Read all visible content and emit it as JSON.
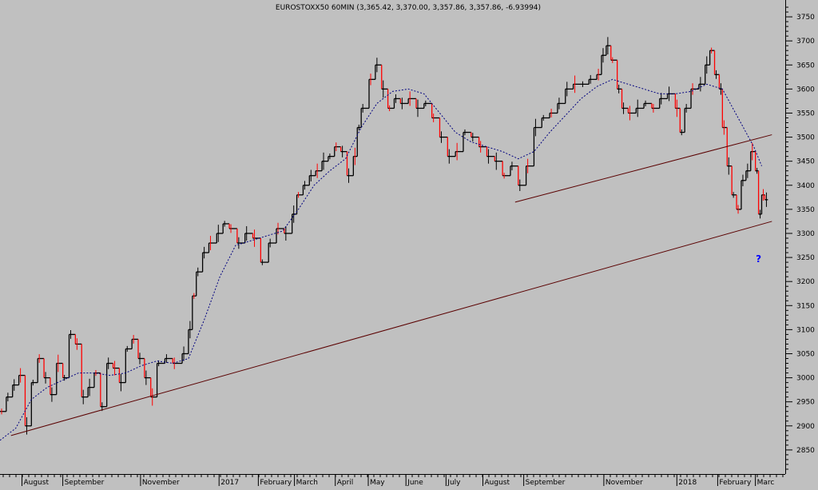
{
  "chart_data": {
    "type": "line",
    "title": "EUROSTOXX50 60MIN (3,365.42, 3,370.00, 3,357.86, 3,357.86, -6.93994)",
    "ylim": [
      2800,
      3780
    ],
    "y_ticks": [
      2850,
      2900,
      2950,
      3000,
      3050,
      3100,
      3150,
      3200,
      3250,
      3300,
      3350,
      3400,
      3450,
      3500,
      3550,
      3600,
      3650,
      3700,
      3750
    ],
    "x_range": [
      0,
      1000
    ],
    "x_tick_labels": [
      {
        "label": "August",
        "x": 30
      },
      {
        "label": "September",
        "x": 82
      },
      {
        "label": "November",
        "x": 181
      },
      {
        "label": "2017",
        "x": 281
      },
      {
        "label": "February",
        "x": 331
      },
      {
        "label": "March",
        "x": 377
      },
      {
        "label": "April",
        "x": 429
      },
      {
        "label": "May",
        "x": 471
      },
      {
        "label": "June",
        "x": 519
      },
      {
        "label": "July",
        "x": 570
      },
      {
        "label": "August",
        "x": 617
      },
      {
        "label": "September",
        "x": 669
      },
      {
        "label": "November",
        "x": 771
      },
      {
        "label": "2018",
        "x": 864
      },
      {
        "label": "February",
        "x": 916
      },
      {
        "label": "Marc",
        "x": 964
      }
    ],
    "series": [
      {
        "style": "bars",
        "color": "#000000",
        "down_color": "#ff0000",
        "x": [
          0,
          8,
          16,
          24,
          32,
          40,
          48,
          56,
          64,
          72,
          80,
          88,
          96,
          104,
          112,
          120,
          128,
          136,
          144,
          152,
          160,
          168,
          176,
          184,
          192,
          200,
          210,
          220,
          232,
          240,
          245,
          250,
          258,
          266,
          276,
          284,
          292,
          302,
          312,
          322,
          332,
          342,
          352,
          362,
          372,
          378,
          386,
          394,
          402,
          410,
          418,
          426,
          434,
          442,
          450,
          455,
          460,
          470,
          478,
          486,
          494,
          502,
          510,
          520,
          530,
          540,
          550,
          560,
          570,
          580,
          590,
          600,
          610,
          620,
          630,
          640,
          650,
          660,
          670,
          680,
          690,
          700,
          710,
          720,
          730,
          740,
          750,
          760,
          766,
          772,
          778,
          786,
          792,
          800,
          810,
          820,
          830,
          840,
          850,
          860,
          866,
          872,
          880,
          890,
          898,
          904,
          910,
          916,
          920,
          926,
          932,
          938,
          944,
          950,
          956,
          962,
          966,
          970,
          974
        ],
        "values": [
          2930,
          2960,
          2985,
          3005,
          2900,
          2990,
          3040,
          3000,
          2965,
          3030,
          3000,
          3090,
          3070,
          2960,
          2980,
          3010,
          2940,
          3030,
          3020,
          2990,
          3060,
          3080,
          3040,
          3000,
          2960,
          3030,
          3040,
          3030,
          3050,
          3100,
          3170,
          3220,
          3260,
          3280,
          3300,
          3320,
          3310,
          3280,
          3300,
          3290,
          3240,
          3280,
          3310,
          3300,
          3340,
          3380,
          3400,
          3420,
          3430,
          3450,
          3460,
          3480,
          3470,
          3420,
          3460,
          3520,
          3560,
          3620,
          3650,
          3600,
          3560,
          3580,
          3570,
          3580,
          3560,
          3570,
          3540,
          3500,
          3460,
          3470,
          3510,
          3500,
          3480,
          3460,
          3450,
          3420,
          3440,
          3400,
          3440,
          3520,
          3540,
          3550,
          3570,
          3600,
          3610,
          3610,
          3620,
          3630,
          3670,
          3690,
          3660,
          3600,
          3560,
          3550,
          3560,
          3570,
          3560,
          3580,
          3590,
          3560,
          3510,
          3560,
          3600,
          3610,
          3650,
          3680,
          3630,
          3600,
          3520,
          3440,
          3380,
          3350,
          3410,
          3430,
          3470,
          3430,
          3340,
          3380,
          3370
        ]
      },
      {
        "style": "dashed",
        "color": "#00007f",
        "x": [
          0,
          20,
          40,
          60,
          80,
          100,
          120,
          140,
          160,
          180,
          200,
          220,
          240,
          260,
          280,
          300,
          320,
          340,
          360,
          380,
          400,
          420,
          440,
          460,
          480,
          500,
          520,
          540,
          560,
          580,
          600,
          620,
          640,
          660,
          680,
          700,
          720,
          740,
          760,
          780,
          800,
          820,
          840,
          860,
          880,
          900,
          920,
          940,
          960,
          970
        ],
        "values": [
          2870,
          2895,
          2955,
          2980,
          2995,
          3010,
          3010,
          3005,
          3010,
          3025,
          3035,
          3030,
          3040,
          3120,
          3210,
          3275,
          3285,
          3295,
          3305,
          3350,
          3400,
          3430,
          3455,
          3520,
          3570,
          3595,
          3600,
          3590,
          3550,
          3510,
          3490,
          3480,
          3470,
          3455,
          3470,
          3510,
          3545,
          3580,
          3605,
          3620,
          3610,
          3600,
          3590,
          3590,
          3595,
          3610,
          3600,
          3540,
          3480,
          3440
        ]
      }
    ],
    "trendlines": [
      {
        "color": "#5a0000",
        "x": [
          14,
          983
        ],
        "values": [
          2880,
          3325
        ]
      },
      {
        "color": "#5a0000",
        "x": [
          656,
          983
        ],
        "values": [
          3365,
          3505
        ]
      }
    ],
    "annotations": [
      {
        "text": "?",
        "color": "#0000ff",
        "x": 966,
        "value": 3240
      }
    ]
  }
}
